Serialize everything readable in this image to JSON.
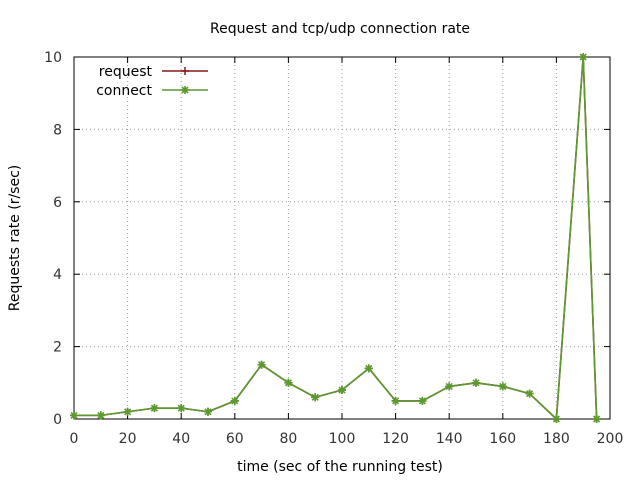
{
  "chart_data": {
    "type": "line",
    "title": "Request and tcp/udp connection rate",
    "xlabel": "time (sec of the running test)",
    "ylabel": "Requests rate (r/sec)",
    "xlim": [
      0,
      200
    ],
    "ylim": [
      0,
      10
    ],
    "xticks": [
      0,
      20,
      40,
      60,
      80,
      100,
      120,
      140,
      160,
      180,
      200
    ],
    "yticks": [
      0,
      2,
      4,
      6,
      8,
      10
    ],
    "grid": true,
    "legend_position": "top-left",
    "x": [
      0,
      10,
      20,
      30,
      40,
      50,
      60,
      70,
      80,
      90,
      100,
      110,
      120,
      130,
      140,
      150,
      160,
      170,
      180,
      190,
      195
    ],
    "series": [
      {
        "name": "request",
        "color": "#8b1a1a",
        "marker": "plus",
        "values": [
          0.1,
          0.1,
          0.2,
          0.3,
          0.3,
          0.2,
          0.5,
          1.5,
          1.0,
          0.6,
          0.8,
          1.4,
          0.5,
          0.5,
          0.9,
          1.0,
          0.9,
          0.7,
          0.0,
          10.0,
          0.0
        ]
      },
      {
        "name": "connect",
        "color": "#5a9a2f",
        "marker": "star",
        "values": [
          0.1,
          0.1,
          0.2,
          0.3,
          0.3,
          0.2,
          0.5,
          1.5,
          1.0,
          0.6,
          0.8,
          1.4,
          0.5,
          0.5,
          0.9,
          1.0,
          0.9,
          0.7,
          0.0,
          10.0,
          0.0
        ]
      }
    ]
  }
}
